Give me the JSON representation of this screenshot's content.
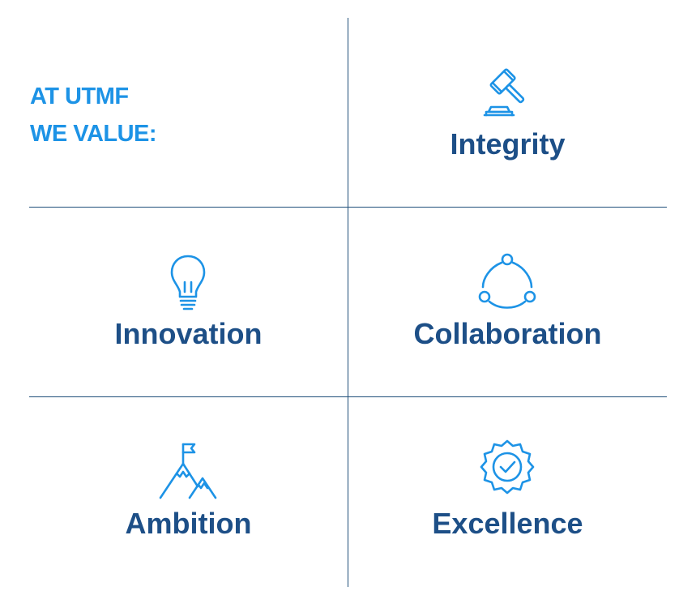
{
  "intro": {
    "line1": "AT UTMF",
    "line2": "WE VALUE:"
  },
  "values": {
    "integrity": {
      "label": "Integrity",
      "icon": "gavel-icon"
    },
    "innovation": {
      "label": "Innovation",
      "icon": "lightbulb-icon"
    },
    "collaboration": {
      "label": "Collaboration",
      "icon": "cycle-nodes-icon"
    },
    "ambition": {
      "label": "Ambition",
      "icon": "mountain-flag-icon"
    },
    "excellence": {
      "label": "Excellence",
      "icon": "badge-check-icon"
    }
  },
  "colors": {
    "accent": "#1d93e6",
    "label": "#1d4f87",
    "divider": "#1f4e79",
    "background": "#ffffff"
  }
}
